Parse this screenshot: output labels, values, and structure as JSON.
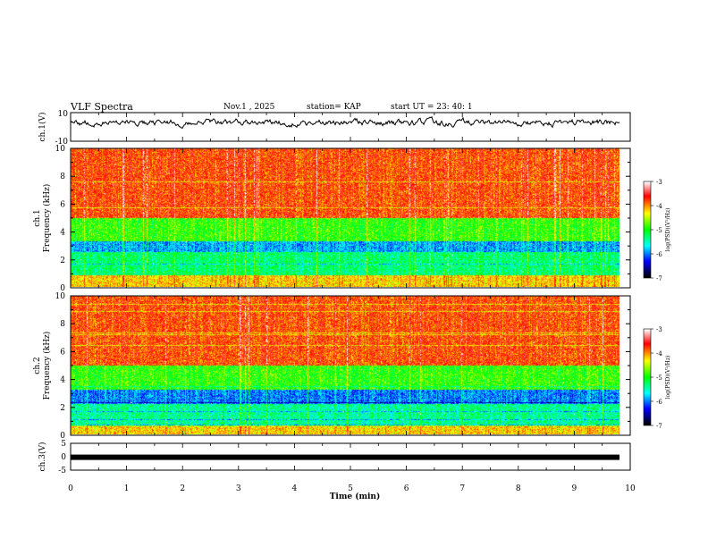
{
  "header": {
    "title": "VLF Spectra",
    "date": "Nov.1  , 2025",
    "station": "station= KAP",
    "start": "start  UT  =   23: 40: 1"
  },
  "chart_data": [
    {
      "type": "line",
      "name": "channel-1-waveform",
      "ylabel": "ch.1(V)",
      "ylim": [
        -10,
        10
      ],
      "yticks": [
        "10",
        "-10"
      ],
      "x_range_min": [
        0,
        9.85
      ],
      "description_values": "noisy waveform, mean near 3 V, amplitude approx +/-6 V"
    },
    {
      "type": "heatmap",
      "name": "channel-1-spectrogram",
      "ylabel": "ch.1\nFrequency  (kHz)",
      "ylim": [
        0,
        10
      ],
      "yticks": [
        "0",
        "2",
        "4",
        "6",
        "8",
        "10"
      ],
      "colorbar": {
        "label": "log(PSD)(V²/Hz)",
        "range": [
          -7,
          -3
        ],
        "ticks": [
          "-3",
          "-4",
          "-5",
          "-6",
          "-7"
        ]
      },
      "bands_khz": [
        {
          "from": 0,
          "to": 0.8,
          "level": -4.2
        },
        {
          "from": 0.8,
          "to": 2.5,
          "level": -5.3
        },
        {
          "from": 2.5,
          "to": 3.3,
          "level": -5.9
        },
        {
          "from": 3.3,
          "to": 5.0,
          "level": -4.9
        },
        {
          "from": 5.0,
          "to": 10,
          "level": -3.8
        }
      ]
    },
    {
      "type": "heatmap",
      "name": "channel-2-spectrogram",
      "ylabel": "ch.2\nFrequency  (kHz)",
      "ylim": [
        0,
        10
      ],
      "yticks": [
        "0",
        "2",
        "4",
        "6",
        "8",
        "10"
      ],
      "colorbar": {
        "label": "log(PSD)(V²/Hz)",
        "range": [
          -7,
          -3
        ],
        "ticks": [
          "-3",
          "-4",
          "-5",
          "-6",
          "-7"
        ]
      },
      "bands_khz": [
        {
          "from": 0,
          "to": 0.6,
          "level": -4.2
        },
        {
          "from": 0.6,
          "to": 2.2,
          "level": -5.4
        },
        {
          "from": 2.2,
          "to": 3.2,
          "level": -6.0
        },
        {
          "from": 3.2,
          "to": 5.0,
          "level": -4.9
        },
        {
          "from": 5.0,
          "to": 10,
          "level": -3.8
        }
      ]
    },
    {
      "type": "line",
      "name": "channel-3-trace",
      "ylabel": "ch.3(V)",
      "ylim": [
        -5,
        5
      ],
      "yticks": [
        "5",
        "0",
        "-5"
      ],
      "value_v": -0.2
    }
  ],
  "xaxis": {
    "label": "Time  (min)",
    "range": [
      0,
      10
    ],
    "ticks": [
      "0",
      "1",
      "2",
      "3",
      "4",
      "5",
      "6",
      "7",
      "8",
      "9",
      "10"
    ]
  },
  "colors": {
    "colormap": [
      "#000000",
      "#0000ff",
      "#00ffff",
      "#00ff00",
      "#ffff00",
      "#ff0000",
      "#ffffff"
    ]
  }
}
